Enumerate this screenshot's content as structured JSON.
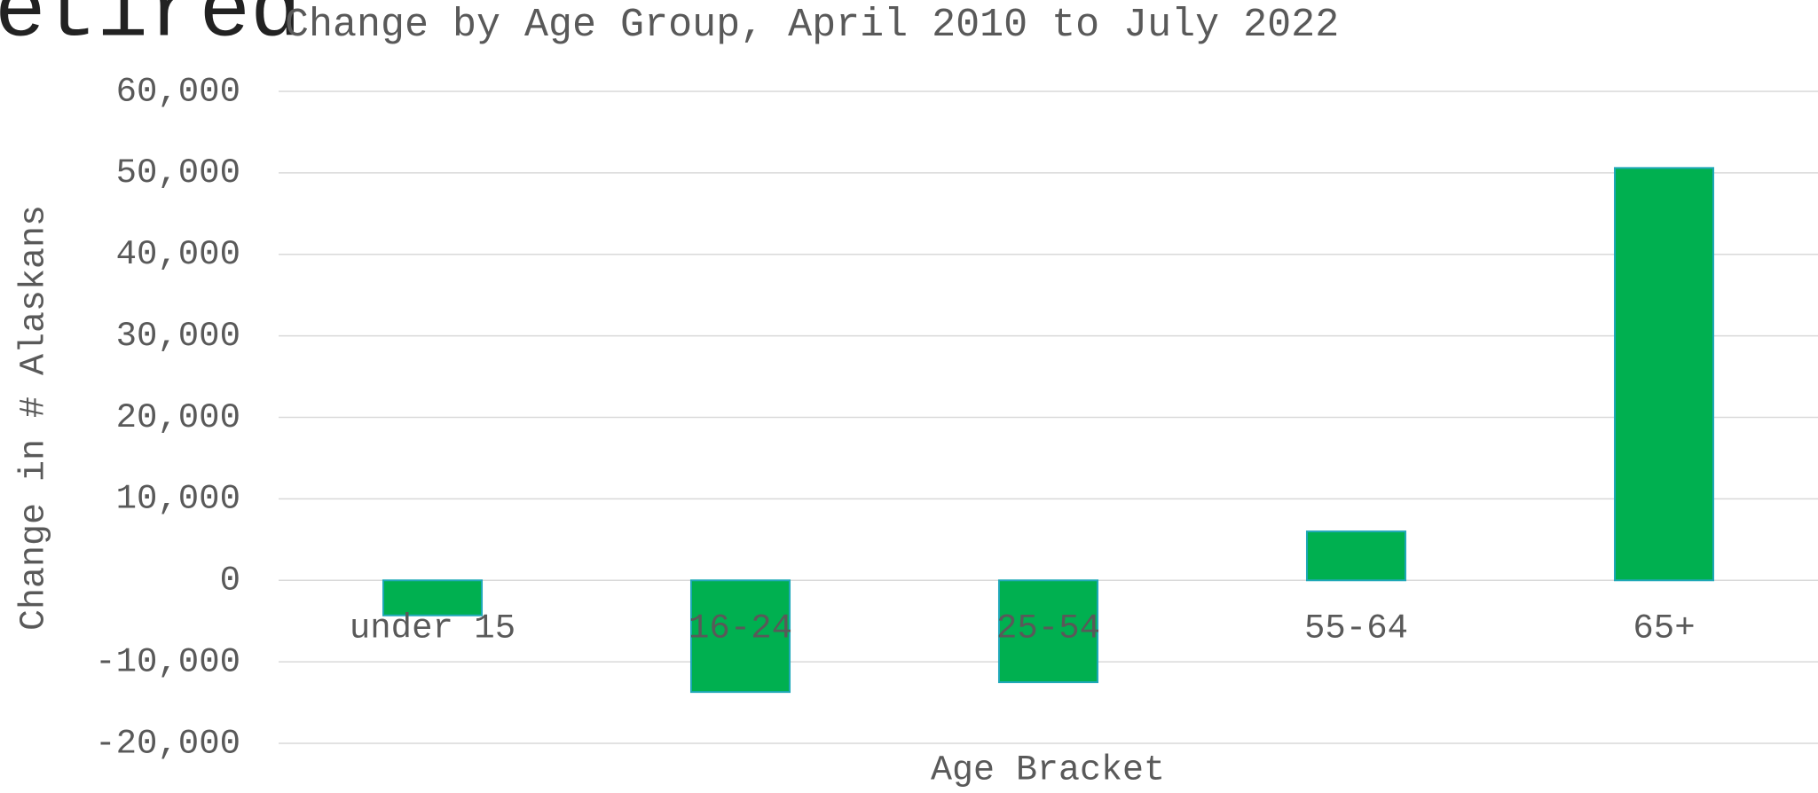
{
  "chart_data": {
    "type": "bar",
    "clipped_heading": "etired",
    "title": "Change by Age Group, April 2010 to July 2022",
    "x_label": "Age Bracket",
    "y_label": "Change in # Alaskans",
    "categories": [
      "under 15",
      "16-24",
      "25-54",
      "55-64",
      "65+"
    ],
    "values": [
      -4300,
      -13700,
      -12500,
      6000,
      50600
    ],
    "color": "#00b050",
    "edge_color": "#1fa8b8",
    "ylim": [
      -20000,
      60000
    ],
    "yticks": [
      {
        "value": -20000,
        "label": "-20,000"
      },
      {
        "value": -10000,
        "label": "-10,000"
      },
      0,
      {
        "value": 10000,
        "label": "10,000"
      },
      {
        "value": 20000,
        "label": "20,000"
      },
      {
        "value": 30000,
        "label": "30,000"
      },
      {
        "value": 40000,
        "label": "40,000"
      },
      {
        "value": 50000,
        "label": "50,000"
      },
      {
        "value": 60000,
        "label": "60,000"
      }
    ],
    "grid": true
  }
}
